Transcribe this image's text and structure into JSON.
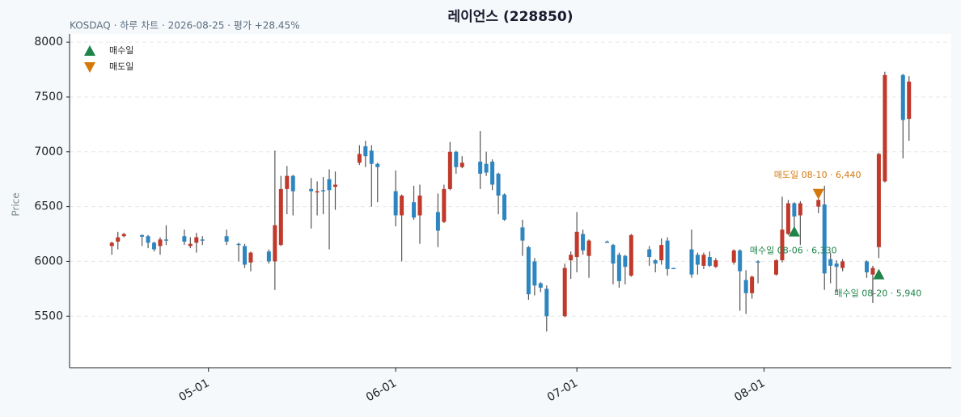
{
  "chart_data": {
    "type": "candlestick",
    "title": "레이언스 (228850)",
    "subtitle": "KOSDAQ · 하루 차트 · 2026-08-25 · 평가 +28.45%",
    "ylabel": "Price",
    "up_color": "#c0392b",
    "down_color": "#2e86c1",
    "wick_color": "#555555",
    "x": [
      "04-15",
      "04-16",
      "04-17",
      "04-20",
      "04-21",
      "04-22",
      "04-23",
      "04-24",
      "04-27",
      "04-28",
      "04-29",
      "04-30",
      "05-04",
      "05-06",
      "05-07",
      "05-08",
      "05-11",
      "05-12",
      "05-13",
      "05-14",
      "05-15",
      "05-18",
      "05-19",
      "05-20",
      "05-21",
      "05-22",
      "05-26",
      "05-27",
      "05-28",
      "05-29",
      "06-01",
      "06-02",
      "06-04",
      "06-05",
      "06-08",
      "06-09",
      "06-10",
      "06-11",
      "06-12",
      "06-15",
      "06-16",
      "06-17",
      "06-18",
      "06-19",
      "06-22",
      "06-23",
      "06-24",
      "06-25",
      "06-26",
      "06-29",
      "06-30",
      "07-01",
      "07-02",
      "07-03",
      "07-06",
      "07-07",
      "07-08",
      "07-09",
      "07-10",
      "07-13",
      "07-14",
      "07-15",
      "07-16",
      "07-17",
      "07-20",
      "07-21",
      "07-22",
      "07-23",
      "07-24",
      "07-27",
      "07-28",
      "07-29",
      "07-30",
      "07-31",
      "08-03",
      "08-04",
      "08-05",
      "08-06",
      "08-07",
      "08-10",
      "08-11",
      "08-12",
      "08-13",
      "08-14",
      "08-18",
      "08-19",
      "08-20",
      "08-21",
      "08-24",
      "08-25"
    ],
    "open": [
      6140,
      6180,
      6230,
      6240,
      6230,
      6170,
      6140,
      6200,
      6230,
      6140,
      6170,
      6200,
      6230,
      6160,
      6140,
      5990,
      6090,
      6000,
      6150,
      6660,
      6780,
      6660,
      6630,
      6650,
      6750,
      6680,
      6900,
      7050,
      7010,
      6890,
      6640,
      6420,
      6540,
      6420,
      6450,
      6360,
      6660,
      7000,
      6860,
      6910,
      6890,
      6910,
      6800,
      6610,
      6310,
      6130,
      6000,
      5800,
      5750,
      5500,
      6010,
      6040,
      6250,
      6050,
      6180,
      6150,
      6060,
      6050,
      5870,
      6110,
      6010,
      6010,
      6190,
      5940,
      6110,
      6060,
      5960,
      6040,
      5950,
      5990,
      6100,
      5830,
      5710,
      6000,
      5880,
      6010,
      6250,
      6530,
      6420,
      6500,
      6520,
      6020,
      5980,
      5940,
      6000,
      5880,
      6130,
      6730,
      7700,
      7300
    ],
    "high": [
      6180,
      6270,
      6260,
      6245,
      6240,
      6180,
      6220,
      6330,
      6290,
      6220,
      6260,
      6230,
      6290,
      6170,
      6160,
      6090,
      6110,
      7010,
      6780,
      6870,
      6790,
      6760,
      6730,
      6770,
      6840,
      6820,
      7060,
      7100,
      7060,
      6900,
      6830,
      6610,
      6690,
      6700,
      6620,
      6700,
      7090,
      7010,
      6960,
      7190,
      7000,
      6930,
      6810,
      6620,
      6380,
      6140,
      6030,
      5810,
      5780,
      5980,
      6090,
      6450,
      6290,
      6200,
      6190,
      6160,
      6080,
      6060,
      6250,
      6140,
      6020,
      6210,
      6220,
      5940,
      6290,
      6080,
      6080,
      6090,
      6030,
      6110,
      6110,
      5920,
      5870,
      6010,
      6020,
      6590,
      6560,
      6540,
      6550,
      6570,
      6690,
      6080,
      6010,
      6020,
      6010,
      5960,
      6990,
      7730,
      7710,
      7690
    ],
    "low": [
      6060,
      6110,
      6220,
      6140,
      6120,
      6090,
      6060,
      6150,
      6150,
      6120,
      6080,
      6150,
      6150,
      6000,
      5940,
      5910,
      5980,
      5740,
      6140,
      6430,
      6420,
      6300,
      6420,
      6430,
      6110,
      6470,
      6880,
      6860,
      6500,
      6540,
      6320,
      6000,
      6380,
      6160,
      6130,
      6350,
      6650,
      6800,
      6850,
      6660,
      6780,
      6650,
      6430,
      6370,
      6050,
      5650,
      5690,
      5720,
      5360,
      5490,
      5840,
      5900,
      6060,
      5850,
      6170,
      5790,
      5760,
      5790,
      5860,
      5960,
      5900,
      5970,
      5870,
      5930,
      5850,
      5880,
      5930,
      5950,
      5940,
      5970,
      5550,
      5520,
      5660,
      5800,
      5870,
      5990,
      6240,
      6300,
      6150,
      6440,
      5740,
      5800,
      5720,
      5910,
      5850,
      5620,
      6030,
      6720,
      6940,
      7100
    ],
    "close": [
      6170,
      6220,
      6250,
      6225,
      6170,
      6110,
      6200,
      6190,
      6180,
      6160,
      6220,
      6190,
      6180,
      6150,
      5970,
      6080,
      6000,
      6330,
      6660,
      6780,
      6640,
      6640,
      6640,
      6640,
      6650,
      6700,
      6980,
      6960,
      6890,
      6860,
      6420,
      6600,
      6400,
      6600,
      6280,
      6660,
      7000,
      6860,
      6900,
      6800,
      6810,
      6700,
      6600,
      6380,
      6190,
      5700,
      5780,
      5760,
      5500,
      5940,
      6060,
      6270,
      6100,
      6190,
      6170,
      5980,
      5820,
      5950,
      6240,
      6040,
      5980,
      6150,
      5930,
      5930,
      5880,
      5970,
      6060,
      5960,
      6010,
      6100,
      5910,
      5710,
      5860,
      5990,
      6010,
      6290,
      6530,
      6410,
      6530,
      6560,
      5890,
      5960,
      5950,
      6000,
      5900,
      5940,
      6980,
      7700,
      7290,
      7640
    ],
    "xlim": [
      "04-08",
      "09-01"
    ],
    "xticks": [
      "05-01",
      "06-01",
      "07-01",
      "08-01"
    ],
    "ylim": [
      5030,
      8075
    ],
    "yticks": [
      5500,
      6000,
      6500,
      7000,
      7500,
      8000
    ],
    "grid": true,
    "legend": "upper left",
    "buy_name": "매수일",
    "buy_color": "#1e8449",
    "sell_name": "매도일",
    "sell_color": "#d4780a",
    "buys": [
      {
        "x": "08-06",
        "price": 6330,
        "label": "매수일 08-06 · 6,330"
      },
      {
        "x": "08-20",
        "price": 5940,
        "label": "매수일 08-20 · 5,940"
      }
    ],
    "sells": [
      {
        "x": "08-10",
        "price": 6440,
        "label": "매도일 08-10 · 6,440"
      }
    ]
  }
}
